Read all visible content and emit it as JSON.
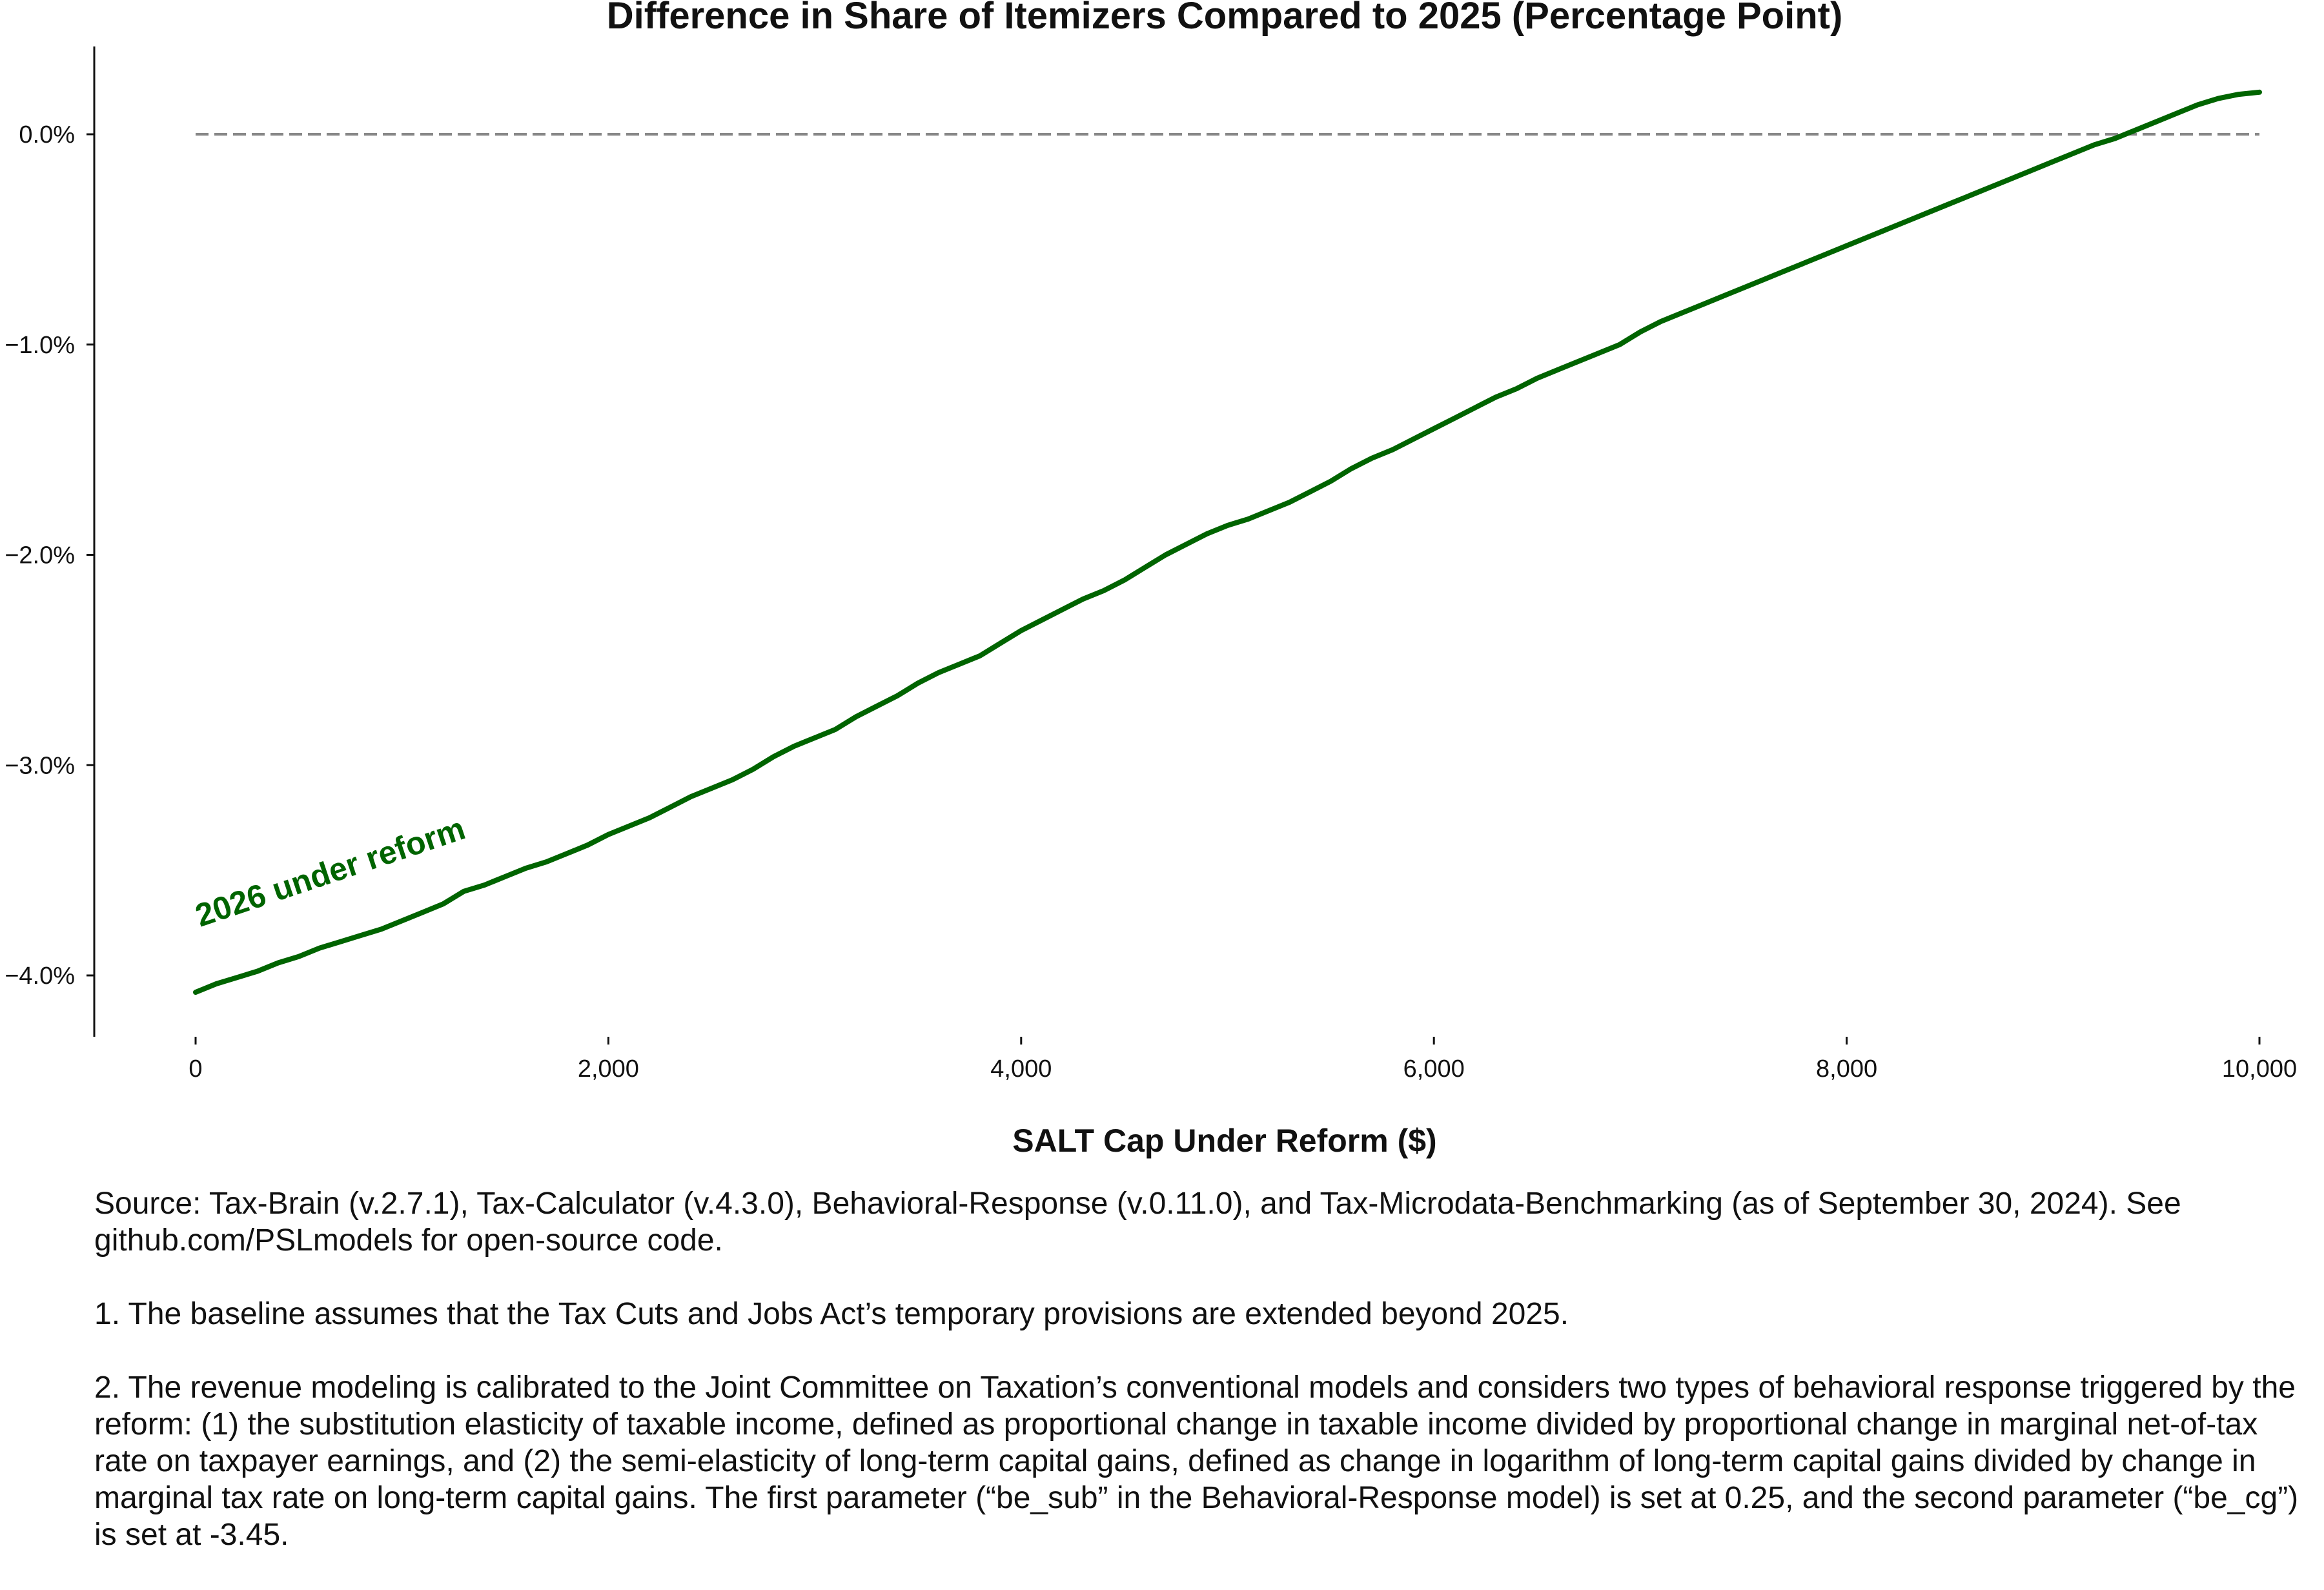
{
  "chart_data": {
    "type": "line",
    "title": "Difference in Share of Itemizers Compared to 2025 (Percentage Point)",
    "xlabel": "SALT Cap Under Reform ($)",
    "ylabel": "",
    "xlim": [
      -250,
      10250
    ],
    "ylim": [
      -4.3,
      0.42
    ],
    "xticks": [
      0,
      2000,
      4000,
      6000,
      8000,
      10000
    ],
    "xtick_labels": [
      "0",
      "2,000",
      "4,000",
      "6,000",
      "8,000",
      "10,000"
    ],
    "yticks": [
      0,
      -1,
      -2,
      -3,
      -4
    ],
    "ytick_labels": [
      "0.0%",
      "−1.0%",
      "−2.0%",
      "−3.0%",
      "−4.0%"
    ],
    "reference_line": {
      "y": 0,
      "style": "dashed",
      "color": "#888888"
    },
    "grid": false,
    "series": [
      {
        "name": "2026 under reform",
        "color": "#006400",
        "x": [
          0,
          100,
          200,
          300,
          400,
          500,
          600,
          700,
          800,
          900,
          1000,
          1100,
          1200,
          1300,
          1400,
          1500,
          1600,
          1700,
          1800,
          1900,
          2000,
          2100,
          2200,
          2300,
          2400,
          2500,
          2600,
          2700,
          2800,
          2900,
          3000,
          3100,
          3200,
          3300,
          3400,
          3500,
          3600,
          3700,
          3800,
          3900,
          4000,
          4100,
          4200,
          4300,
          4400,
          4500,
          4600,
          4700,
          4800,
          4900,
          5000,
          5100,
          5200,
          5300,
          5400,
          5500,
          5600,
          5700,
          5800,
          5900,
          6000,
          6100,
          6200,
          6300,
          6400,
          6500,
          6600,
          6700,
          6800,
          6900,
          7000,
          7100,
          7200,
          7300,
          7400,
          7500,
          7600,
          7700,
          7800,
          7900,
          8000,
          8100,
          8200,
          8300,
          8400,
          8500,
          8600,
          8700,
          8800,
          8900,
          9000,
          9100,
          9200,
          9300,
          9400,
          9500,
          9600,
          9700,
          9800,
          9900,
          10000
        ],
        "values": [
          -4.08,
          -4.04,
          -4.01,
          -3.98,
          -3.94,
          -3.91,
          -3.87,
          -3.84,
          -3.81,
          -3.78,
          -3.74,
          -3.7,
          -3.66,
          -3.6,
          -3.57,
          -3.53,
          -3.49,
          -3.46,
          -3.42,
          -3.38,
          -3.33,
          -3.29,
          -3.25,
          -3.2,
          -3.15,
          -3.11,
          -3.07,
          -3.02,
          -2.96,
          -2.91,
          -2.87,
          -2.83,
          -2.77,
          -2.72,
          -2.67,
          -2.61,
          -2.56,
          -2.52,
          -2.48,
          -2.42,
          -2.36,
          -2.31,
          -2.26,
          -2.21,
          -2.17,
          -2.12,
          -2.06,
          -2.0,
          -1.95,
          -1.9,
          -1.86,
          -1.83,
          -1.79,
          -1.75,
          -1.7,
          -1.65,
          -1.59,
          -1.54,
          -1.5,
          -1.45,
          -1.4,
          -1.35,
          -1.3,
          -1.25,
          -1.21,
          -1.16,
          -1.12,
          -1.08,
          -1.04,
          -1.0,
          -0.94,
          -0.89,
          -0.85,
          -0.81,
          -0.77,
          -0.73,
          -0.69,
          -0.65,
          -0.61,
          -0.57,
          -0.53,
          -0.49,
          -0.45,
          -0.41,
          -0.37,
          -0.33,
          -0.29,
          -0.25,
          -0.21,
          -0.17,
          -0.13,
          -0.09,
          -0.05,
          -0.02,
          0.02,
          0.06,
          0.1,
          0.14,
          0.17,
          0.19,
          0.2
        ]
      }
    ]
  },
  "notes": {
    "source": "Source: Tax-Brain (v.2.7.1), Tax-Calculator (v.4.3.0), Behavioral-Response (v.0.11.0), and Tax-Microdata-Benchmarking (as of September 30, 2024). See github.com/PSLmodels for open-source code.",
    "note1": "1. The baseline assumes that the Tax Cuts and Jobs Act’s temporary provisions are extended beyond 2025.",
    "note2": "2. The revenue modeling is calibrated to the Joint Committee on Taxation’s conventional models and considers two types of behavioral response triggered by the reform: (1) the substitution elasticity of taxable income, defined as proportional change in taxable income divided by proportional change in marginal net-of-tax rate on taxpayer earnings, and (2) the semi-elasticity of long-term capital gains, defined as change in logarithm of long-term capital gains divided by change in marginal tax rate on long-term capital gains. The first parameter (“be_sub” in the Behavioral-Response model) is set at 0.25, and the second parameter (“be_cg”) is set at -3.45."
  }
}
